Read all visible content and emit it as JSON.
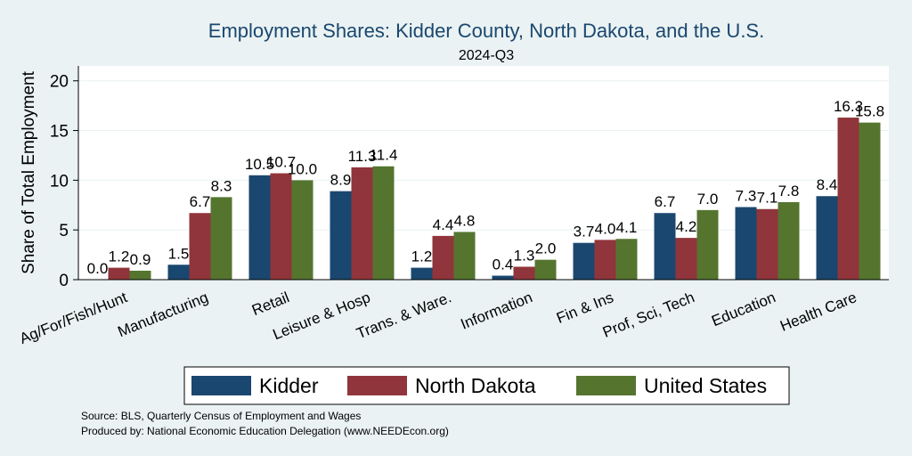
{
  "chart_data": {
    "type": "bar",
    "title": "Employment Shares: Kidder County, North Dakota, and the U.S.",
    "subtitle": "2024-Q3",
    "xlabel": "",
    "ylabel": "Share of Total Employment",
    "ylim": [
      0,
      21.5
    ],
    "yticks": [
      0,
      5,
      10,
      15,
      20
    ],
    "grid": true,
    "legend_position": "bottom",
    "categories": [
      "Ag/For/Fish/Hunt",
      "Manufacturing",
      "Retail",
      "Leisure & Hosp",
      "Trans. & Ware.",
      "Information",
      "Fin & Ins",
      "Prof, Sci, Tech",
      "Education",
      "Health Care"
    ],
    "series": [
      {
        "name": "Kidder",
        "color": "#1a476f",
        "values": [
          0.0,
          1.5,
          10.5,
          8.9,
          1.2,
          0.4,
          3.7,
          6.7,
          7.3,
          8.4
        ]
      },
      {
        "name": "North Dakota",
        "color": "#90353b",
        "values": [
          1.2,
          6.7,
          10.7,
          11.3,
          4.4,
          1.3,
          4.0,
          4.2,
          7.1,
          16.3
        ]
      },
      {
        "name": "United States",
        "color": "#55752f",
        "values": [
          0.9,
          8.3,
          10.0,
          11.4,
          4.8,
          2.0,
          4.1,
          7.0,
          7.8,
          15.8
        ]
      }
    ]
  },
  "notes": [
    "Source: BLS, Quarterly Census of Employment and Wages",
    "Produced by: National Economic Education Delegation (www.NEEDEcon.org)"
  ]
}
